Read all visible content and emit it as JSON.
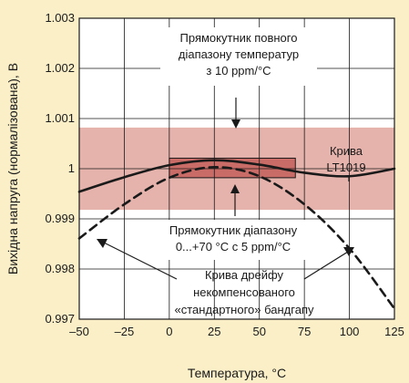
{
  "chart_data": {
    "type": "line",
    "title": "",
    "xlabel": "Температура, °C",
    "ylabel": "Вихідна напруга (нормалізована), В",
    "xlim": [
      -50,
      125
    ],
    "ylim": [
      0.997,
      1.003
    ],
    "xticks": [
      -50,
      -25,
      0,
      25,
      50,
      75,
      100,
      125
    ],
    "xtick_labels": [
      "–50",
      "–25",
      "0",
      "25",
      "50",
      "75",
      "100",
      "125"
    ],
    "yticks": [
      0.997,
      0.998,
      0.999,
      1,
      1.001,
      1.002,
      1.003
    ],
    "ytick_labels": [
      "0.997",
      "0.998",
      "0.999",
      "1",
      "1.001",
      "1.002",
      "1.003"
    ],
    "grid": true,
    "series": [
      {
        "name": "Крива LT1019",
        "style": "solid",
        "color": "#1a1a1a",
        "x": [
          -50,
          -25,
          0,
          25,
          50,
          75,
          100,
          125
        ],
        "y": [
          0.99954,
          0.99983,
          1.00007,
          1.00017,
          1.00008,
          0.99992,
          0.99985,
          1.0
        ]
      },
      {
        "name": "Крива дрейфу некомпенсованого «стандартного» бандгапу",
        "style": "dashed",
        "color": "#1a1a1a",
        "x": [
          -50,
          -25,
          0,
          25,
          50,
          75,
          100,
          125
        ],
        "y": [
          0.99861,
          0.99929,
          0.99982,
          1.00003,
          0.99985,
          0.99929,
          0.99841,
          0.99721
        ]
      }
    ],
    "bands": [
      {
        "name": "Прямокутник повного діапазону температур з 10 ppm/°C",
        "x": [
          -50,
          125
        ],
        "y": [
          0.99918,
          1.00082
        ],
        "color": "#e6b3ac"
      },
      {
        "name": "Прямокутник діапазону 0...+70 °C с 5 ppm/°C",
        "x": [
          0,
          70
        ],
        "y": [
          0.99982,
          1.00021
        ],
        "color": "#c96b66"
      }
    ],
    "annotations": {
      "top_box_lines": [
        "Прямокутник повного",
        "діапазону температур",
        "з 10 ppm/°C"
      ],
      "lt1019_lines": [
        "Крива",
        "LT1019"
      ],
      "mid_box_lines": [
        "Прямокутник діапазону",
        "0...+70 °C с 5 ppm/°C"
      ],
      "drift_lines": [
        "Крива дрейфу",
        "некомпенсованого",
        "«стандартного» бандгапу"
      ]
    }
  },
  "colors": {
    "background": "#fbefc8",
    "plot_background": "#ffffff",
    "grid": "#1a1a1a",
    "wide_band": "#e6b3ac",
    "narrow_band": "#c96b66"
  }
}
